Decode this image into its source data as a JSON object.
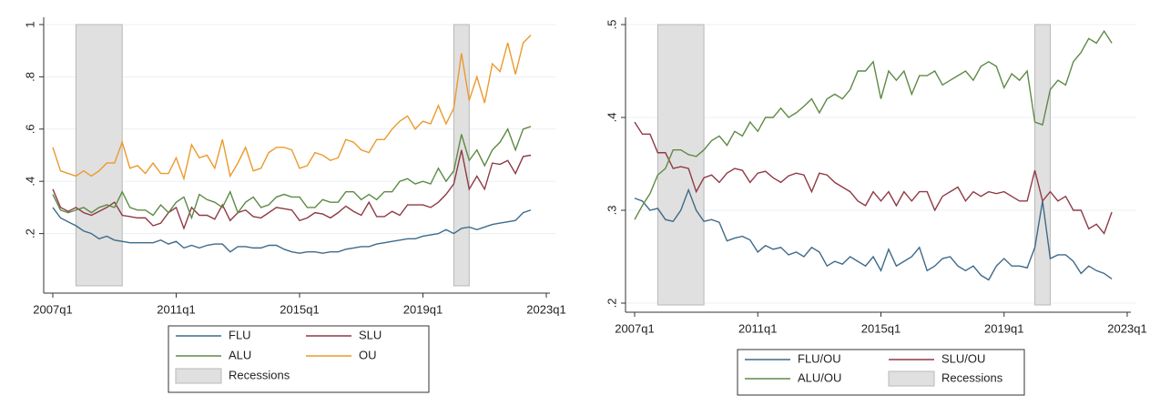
{
  "chart_data": [
    {
      "type": "line",
      "x": [
        "2007q1",
        "2007q2",
        "2007q3",
        "2007q4",
        "2008q1",
        "2008q2",
        "2008q3",
        "2008q4",
        "2009q1",
        "2009q2",
        "2009q3",
        "2009q4",
        "2010q1",
        "2010q2",
        "2010q3",
        "2010q4",
        "2011q1",
        "2011q2",
        "2011q3",
        "2011q4",
        "2012q1",
        "2012q2",
        "2012q3",
        "2012q4",
        "2013q1",
        "2013q2",
        "2013q3",
        "2013q4",
        "2014q1",
        "2014q2",
        "2014q3",
        "2014q4",
        "2015q1",
        "2015q2",
        "2015q3",
        "2015q4",
        "2016q1",
        "2016q2",
        "2016q3",
        "2016q4",
        "2017q1",
        "2017q2",
        "2017q3",
        "2017q4",
        "2018q1",
        "2018q2",
        "2018q3",
        "2018q4",
        "2019q1",
        "2019q2",
        "2019q3",
        "2019q4",
        "2020q1",
        "2020q2",
        "2020q3",
        "2020q4",
        "2021q1",
        "2021q2",
        "2021q3",
        "2021q4",
        "2022q1",
        "2022q2",
        "2022q3"
      ],
      "xlim": [
        "2007q1",
        "2023q1"
      ],
      "xticks": [
        "2007q1",
        "2011q1",
        "2015q1",
        "2019q1",
        "2023q1"
      ],
      "ylim": [
        0,
        1
      ],
      "yticks": [
        {
          "value": 0.2,
          "label": ".2"
        },
        {
          "value": 0.4,
          "label": ".4"
        },
        {
          "value": 0.6,
          "label": ".6"
        },
        {
          "value": 0.8,
          "label": ".8"
        },
        1
      ],
      "grid": true,
      "recessions": {
        "name": "Recessions",
        "color": "#e0e0e0",
        "periods": [
          {
            "start": "2007q4",
            "end": "2009q2"
          },
          {
            "start": "2020q1",
            "end": "2020q3"
          }
        ]
      },
      "series": [
        {
          "name": "FLU",
          "color": "#3e6a8a",
          "values": [
            0.3,
            0.26,
            0.245,
            0.23,
            0.21,
            0.2,
            0.18,
            0.19,
            0.175,
            0.17,
            0.165,
            0.165,
            0.165,
            0.165,
            0.175,
            0.16,
            0.17,
            0.145,
            0.155,
            0.145,
            0.155,
            0.16,
            0.16,
            0.13,
            0.15,
            0.15,
            0.145,
            0.145,
            0.155,
            0.155,
            0.14,
            0.13,
            0.125,
            0.13,
            0.13,
            0.125,
            0.13,
            0.13,
            0.14,
            0.145,
            0.15,
            0.15,
            0.16,
            0.165,
            0.17,
            0.175,
            0.18,
            0.18,
            0.19,
            0.195,
            0.2,
            0.215,
            0.2,
            0.22,
            0.225,
            0.215,
            0.225,
            0.235,
            0.24,
            0.245,
            0.25,
            0.28,
            0.29
          ]
        },
        {
          "name": "SLU",
          "color": "#8f3a44",
          "values": [
            0.37,
            0.3,
            0.285,
            0.3,
            0.28,
            0.27,
            0.285,
            0.3,
            0.32,
            0.27,
            0.265,
            0.26,
            0.26,
            0.23,
            0.24,
            0.28,
            0.3,
            0.22,
            0.3,
            0.27,
            0.27,
            0.255,
            0.31,
            0.25,
            0.28,
            0.29,
            0.265,
            0.26,
            0.28,
            0.3,
            0.295,
            0.29,
            0.25,
            0.26,
            0.28,
            0.275,
            0.26,
            0.28,
            0.305,
            0.285,
            0.27,
            0.32,
            0.265,
            0.265,
            0.285,
            0.27,
            0.31,
            0.31,
            0.31,
            0.3,
            0.32,
            0.35,
            0.39,
            0.52,
            0.37,
            0.42,
            0.37,
            0.47,
            0.465,
            0.48,
            0.43,
            0.495,
            0.5
          ]
        },
        {
          "name": "ALU",
          "color": "#5e8a45",
          "values": [
            0.35,
            0.29,
            0.28,
            0.29,
            0.3,
            0.28,
            0.3,
            0.31,
            0.3,
            0.36,
            0.3,
            0.29,
            0.29,
            0.27,
            0.31,
            0.28,
            0.32,
            0.34,
            0.26,
            0.35,
            0.33,
            0.32,
            0.3,
            0.36,
            0.28,
            0.32,
            0.34,
            0.3,
            0.31,
            0.34,
            0.35,
            0.34,
            0.34,
            0.3,
            0.3,
            0.33,
            0.32,
            0.32,
            0.36,
            0.36,
            0.33,
            0.35,
            0.33,
            0.36,
            0.36,
            0.4,
            0.41,
            0.39,
            0.4,
            0.39,
            0.45,
            0.4,
            0.44,
            0.58,
            0.48,
            0.52,
            0.46,
            0.52,
            0.55,
            0.6,
            0.52,
            0.6,
            0.61
          ]
        },
        {
          "name": "OU",
          "color": "#eb9a2c",
          "values": [
            0.53,
            0.44,
            0.43,
            0.42,
            0.44,
            0.42,
            0.44,
            0.47,
            0.47,
            0.55,
            0.45,
            0.46,
            0.43,
            0.47,
            0.43,
            0.43,
            0.49,
            0.41,
            0.54,
            0.49,
            0.5,
            0.45,
            0.56,
            0.42,
            0.47,
            0.53,
            0.44,
            0.45,
            0.51,
            0.53,
            0.53,
            0.52,
            0.45,
            0.46,
            0.51,
            0.5,
            0.48,
            0.49,
            0.56,
            0.55,
            0.52,
            0.51,
            0.56,
            0.56,
            0.6,
            0.63,
            0.65,
            0.6,
            0.63,
            0.62,
            0.69,
            0.62,
            0.68,
            0.89,
            0.71,
            0.8,
            0.7,
            0.85,
            0.82,
            0.93,
            0.81,
            0.93,
            0.96
          ]
        }
      ]
    },
    {
      "type": "line",
      "x": [
        "2007q1",
        "2007q2",
        "2007q3",
        "2007q4",
        "2008q1",
        "2008q2",
        "2008q3",
        "2008q4",
        "2009q1",
        "2009q2",
        "2009q3",
        "2009q4",
        "2010q1",
        "2010q2",
        "2010q3",
        "2010q4",
        "2011q1",
        "2011q2",
        "2011q3",
        "2011q4",
        "2012q1",
        "2012q2",
        "2012q3",
        "2012q4",
        "2013q1",
        "2013q2",
        "2013q3",
        "2013q4",
        "2014q1",
        "2014q2",
        "2014q3",
        "2014q4",
        "2015q1",
        "2015q2",
        "2015q3",
        "2015q4",
        "2016q1",
        "2016q2",
        "2016q3",
        "2016q4",
        "2017q1",
        "2017q2",
        "2017q3",
        "2017q4",
        "2018q1",
        "2018q2",
        "2018q3",
        "2018q4",
        "2019q1",
        "2019q2",
        "2019q3",
        "2019q4",
        "2020q1",
        "2020q2",
        "2020q3",
        "2020q4",
        "2021q1",
        "2021q2",
        "2021q3",
        "2021q4",
        "2022q1",
        "2022q2",
        "2022q3"
      ],
      "xlim": [
        "2007q1",
        "2023q1"
      ],
      "xticks": [
        "2007q1",
        "2011q1",
        "2015q1",
        "2019q1",
        "2023q1"
      ],
      "ylim": [
        0.2,
        0.5
      ],
      "yticks": [
        {
          "value": 0.2,
          "label": ".2"
        },
        {
          "value": 0.3,
          "label": ".3"
        },
        {
          "value": 0.4,
          "label": ".4"
        },
        {
          "value": 0.5,
          "label": ".5"
        }
      ],
      "grid": true,
      "recessions": {
        "name": "Recessions",
        "color": "#e0e0e0",
        "periods": [
          {
            "start": "2007q4",
            "end": "2009q2"
          },
          {
            "start": "2020q1",
            "end": "2020q3"
          }
        ]
      },
      "series": [
        {
          "name": "FLU/OU",
          "color": "#3e6a8a",
          "values": [
            0.313,
            0.31,
            0.3,
            0.302,
            0.29,
            0.288,
            0.3,
            0.322,
            0.3,
            0.288,
            0.29,
            0.287,
            0.267,
            0.27,
            0.272,
            0.268,
            0.255,
            0.262,
            0.258,
            0.26,
            0.252,
            0.255,
            0.25,
            0.26,
            0.255,
            0.24,
            0.245,
            0.242,
            0.25,
            0.245,
            0.24,
            0.25,
            0.235,
            0.258,
            0.24,
            0.245,
            0.25,
            0.26,
            0.235,
            0.24,
            0.248,
            0.25,
            0.24,
            0.235,
            0.24,
            0.23,
            0.225,
            0.24,
            0.248,
            0.24,
            0.24,
            0.238,
            0.26,
            0.31,
            0.248,
            0.252,
            0.252,
            0.245,
            0.232,
            0.24,
            0.235,
            0.232,
            0.226
          ]
        },
        {
          "name": "SLU/OU",
          "color": "#8f3a44",
          "values": [
            0.395,
            0.382,
            0.382,
            0.362,
            0.362,
            0.345,
            0.347,
            0.345,
            0.32,
            0.335,
            0.338,
            0.33,
            0.34,
            0.345,
            0.343,
            0.33,
            0.34,
            0.342,
            0.335,
            0.33,
            0.337,
            0.34,
            0.338,
            0.32,
            0.34,
            0.338,
            0.33,
            0.325,
            0.32,
            0.31,
            0.305,
            0.32,
            0.31,
            0.32,
            0.305,
            0.32,
            0.31,
            0.32,
            0.32,
            0.3,
            0.315,
            0.32,
            0.325,
            0.31,
            0.32,
            0.315,
            0.32,
            0.318,
            0.32,
            0.315,
            0.31,
            0.31,
            0.343,
            0.31,
            0.32,
            0.31,
            0.315,
            0.3,
            0.3,
            0.28,
            0.285,
            0.275,
            0.298
          ]
        },
        {
          "name": "ALU/OU",
          "color": "#5e8a45",
          "values": [
            0.29,
            0.305,
            0.318,
            0.338,
            0.345,
            0.365,
            0.365,
            0.36,
            0.358,
            0.365,
            0.375,
            0.38,
            0.37,
            0.385,
            0.38,
            0.395,
            0.385,
            0.4,
            0.4,
            0.41,
            0.4,
            0.405,
            0.412,
            0.42,
            0.405,
            0.42,
            0.425,
            0.42,
            0.43,
            0.45,
            0.45,
            0.46,
            0.42,
            0.45,
            0.44,
            0.45,
            0.425,
            0.445,
            0.445,
            0.45,
            0.435,
            0.44,
            0.445,
            0.45,
            0.44,
            0.455,
            0.46,
            0.455,
            0.432,
            0.447,
            0.44,
            0.45,
            0.395,
            0.392,
            0.43,
            0.44,
            0.435,
            0.46,
            0.47,
            0.485,
            0.48,
            0.493,
            0.48
          ]
        }
      ]
    }
  ]
}
